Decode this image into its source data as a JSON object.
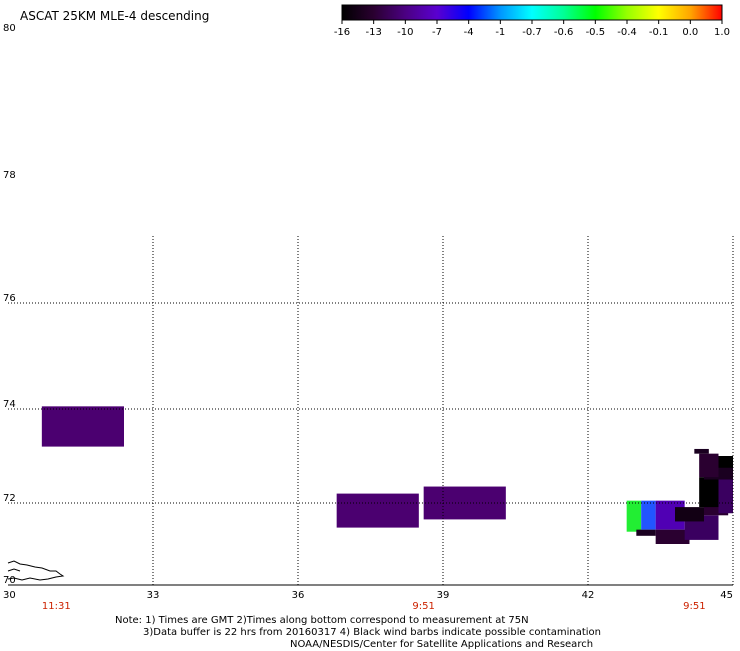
{
  "title": "ASCAT 25KM MLE-4 descending",
  "colorbar": {
    "labels": [
      "-16",
      "-13",
      "-10",
      "-7",
      "-4",
      "-1",
      "-0.7",
      "-0.6",
      "-0.5",
      "-0.4",
      "-0.1",
      "0.0",
      "1.0"
    ],
    "colors": [
      "#000000",
      "#2a0030",
      "#4b0082",
      "#5a00d0",
      "#0000ff",
      "#0096ff",
      "#00ffff",
      "#00ff96",
      "#00ff00",
      "#96ff00",
      "#ffff00",
      "#ffa500",
      "#ff0000"
    ]
  },
  "map": {
    "lat_labels": [
      "80",
      "78",
      "76",
      "74",
      "72",
      "70"
    ],
    "lon_labels": [
      "30",
      "33",
      "36",
      "39",
      "42",
      "45"
    ],
    "time_labels": [
      {
        "text": "11:31",
        "lon": 31
      },
      {
        "text": "9:51",
        "lon": 38.6
      },
      {
        "text": "9:51",
        "lon": 44.2
      }
    ],
    "gridline_color": "#000000",
    "land_outline": "Kola coast fragment near 30E, 70.3N",
    "cells": [
      {
        "lon0": 30.7,
        "lon1": 32.4,
        "lat0": 73.2,
        "lat1": 74.05,
        "color": "#4b0070"
      },
      {
        "lon0": 36.8,
        "lon1": 38.5,
        "lat0": 71.4,
        "lat1": 72.2,
        "color": "#4b0070"
      },
      {
        "lon0": 38.6,
        "lon1": 40.3,
        "lat0": 71.6,
        "lat1": 72.35,
        "color": "#4b0070"
      },
      {
        "lon0": 42.8,
        "lon1": 43.1,
        "lat0": 71.3,
        "lat1": 72.05,
        "color": "#22ee33"
      },
      {
        "lon0": 43.1,
        "lon1": 43.4,
        "lat0": 71.35,
        "lat1": 72.05,
        "color": "#2255ff"
      },
      {
        "lon0": 43.4,
        "lon1": 44.0,
        "lat0": 71.35,
        "lat1": 72.05,
        "color": "#5000b4"
      },
      {
        "lon0": 43.0,
        "lon1": 43.4,
        "lat0": 71.2,
        "lat1": 71.35,
        "color": "#1a0020"
      },
      {
        "lon0": 43.4,
        "lon1": 44.1,
        "lat0": 71.0,
        "lat1": 71.35,
        "color": "#2a0030"
      },
      {
        "lon0": 44.0,
        "lon1": 44.7,
        "lat0": 71.1,
        "lat1": 71.7,
        "color": "#3a0060"
      },
      {
        "lon0": 43.8,
        "lon1": 44.4,
        "lat0": 71.55,
        "lat1": 71.9,
        "color": "#120014"
      },
      {
        "lon0": 44.4,
        "lon1": 44.9,
        "lat0": 71.7,
        "lat1": 72.0,
        "color": "#2a0030"
      },
      {
        "lon0": 44.3,
        "lon1": 44.7,
        "lat0": 71.9,
        "lat1": 72.55,
        "color": "#000000"
      },
      {
        "lon0": 44.7,
        "lon1": 45.0,
        "lat0": 71.75,
        "lat1": 72.65,
        "color": "#3a0060"
      },
      {
        "lon0": 44.4,
        "lon1": 45.0,
        "lat0": 72.5,
        "lat1": 72.8,
        "color": "#1a0020"
      },
      {
        "lon0": 44.3,
        "lon1": 44.7,
        "lat0": 72.55,
        "lat1": 73.05,
        "color": "#2a0030"
      },
      {
        "lon0": 44.2,
        "lon1": 44.5,
        "lat0": 73.05,
        "lat1": 73.15,
        "color": "#1a0020"
      },
      {
        "lon0": 44.7,
        "lon1": 45.0,
        "lat0": 72.75,
        "lat1": 73.0,
        "color": "#000000"
      }
    ]
  },
  "notes": [
    "Note: 1) Times are GMT 2)Times along bottom correspond to measurement at 75N",
    "3)Data buffer is 22 hrs from 20160317 4) Black wind barbs indicate possible contamination",
    "NOAA/NESDIS/Center for Satellite Applications and Research"
  ]
}
